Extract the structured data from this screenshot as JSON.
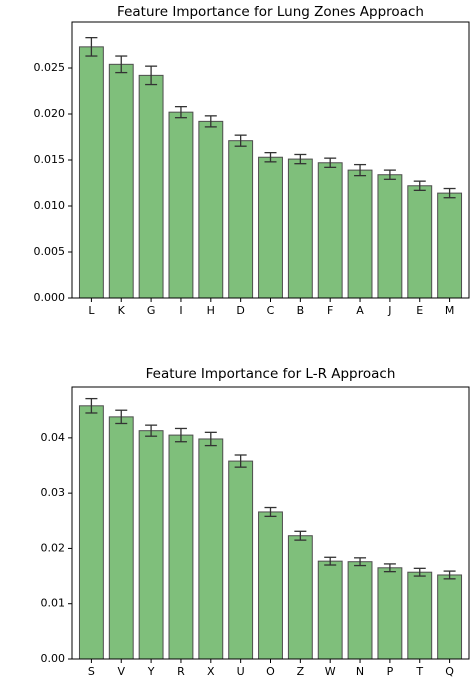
{
  "chart_data": [
    {
      "type": "bar",
      "title": "Feature Importance for Lung Zones Approach",
      "categories": [
        "L",
        "K",
        "G",
        "I",
        "H",
        "D",
        "C",
        "B",
        "F",
        "A",
        "J",
        "E",
        "M"
      ],
      "values": [
        0.0273,
        0.0254,
        0.0242,
        0.0202,
        0.0192,
        0.0171,
        0.0153,
        0.0151,
        0.0147,
        0.0139,
        0.0134,
        0.0122,
        0.0114
      ],
      "errors": [
        0.001,
        0.0009,
        0.001,
        0.0006,
        0.0006,
        0.0006,
        0.0005,
        0.0005,
        0.0005,
        0.0006,
        0.0005,
        0.0005,
        0.0005
      ],
      "color": "#7fbf7b",
      "ylim": [
        0,
        0.03
      ],
      "yticks": [
        {
          "value": 0,
          "label": "0.000"
        },
        {
          "value": 0.005,
          "label": "0.005"
        },
        {
          "value": 0.01,
          "label": "0.010"
        },
        {
          "value": 0.015,
          "label": "0.015"
        },
        {
          "value": 0.02,
          "label": "0.020"
        },
        {
          "value": 0.025,
          "label": "0.025"
        }
      ]
    },
    {
      "type": "bar",
      "title": "Feature Importance for L-R Approach",
      "categories": [
        "S",
        "V",
        "Y",
        "R",
        "X",
        "U",
        "O",
        "Z",
        "W",
        "N",
        "P",
        "T",
        "Q"
      ],
      "values": [
        0.0458,
        0.0438,
        0.0413,
        0.0405,
        0.0398,
        0.0358,
        0.0266,
        0.0223,
        0.0177,
        0.0176,
        0.0165,
        0.0157,
        0.0152
      ],
      "errors": [
        0.0013,
        0.0012,
        0.001,
        0.0012,
        0.0012,
        0.0011,
        0.0008,
        0.0008,
        0.0007,
        0.0007,
        0.0007,
        0.0007,
        0.0007
      ],
      "color": "#7fbf7b",
      "ylim": [
        0,
        0.0492
      ],
      "yticks": [
        {
          "value": 0,
          "label": "0.00"
        },
        {
          "value": 0.01,
          "label": "0.01"
        },
        {
          "value": 0.02,
          "label": "0.02"
        },
        {
          "value": 0.03,
          "label": "0.03"
        },
        {
          "value": 0.04,
          "label": "0.04"
        }
      ]
    }
  ]
}
